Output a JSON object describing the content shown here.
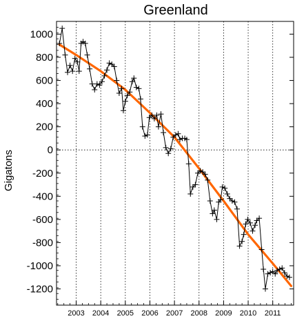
{
  "chart_data": {
    "type": "line",
    "title": "Greenland",
    "xlabel": "",
    "ylabel": "Gigatons",
    "xlim": [
      2002.2,
      2011.85
    ],
    "ylim": [
      -1340,
      1110
    ],
    "x_ticks": [
      {
        "value": 2003,
        "label": "2003"
      },
      {
        "value": 2004,
        "label": "2004"
      },
      {
        "value": 2005,
        "label": "2005"
      },
      {
        "value": 2006,
        "label": "2006"
      },
      {
        "value": 2007,
        "label": "2007"
      },
      {
        "value": 2008,
        "label": "2008"
      },
      {
        "value": 2009,
        "label": "2009"
      },
      {
        "value": 2010,
        "label": "2010"
      },
      {
        "value": 2011,
        "label": "2011"
      }
    ],
    "y_ticks": [
      {
        "value": 1000,
        "label": "1000"
      },
      {
        "value": 800,
        "label": "800"
      },
      {
        "value": 600,
        "label": "600"
      },
      {
        "value": 400,
        "label": "400"
      },
      {
        "value": 200,
        "label": "200"
      },
      {
        "value": 0,
        "label": "0"
      },
      {
        "value": -200,
        "label": "-200"
      },
      {
        "value": -400,
        "label": "-400"
      },
      {
        "value": -600,
        "label": "-600"
      },
      {
        "value": -800,
        "label": "-800"
      },
      {
        "value": -1000,
        "label": "-1000"
      },
      {
        "value": -1200,
        "label": "-1200"
      }
    ],
    "grid": {
      "vertical": true,
      "horizontal_zero_line": true,
      "style": "dotted"
    },
    "colors": {
      "observed": "#000000",
      "trend": "#ff6600"
    },
    "series": [
      {
        "style": "line-with-plus-markers",
        "points": [
          [
            2002.32,
            920
          ],
          [
            2002.43,
            1050
          ],
          [
            2002.55,
            820
          ],
          [
            2002.65,
            670
          ],
          [
            2002.75,
            730
          ],
          [
            2002.85,
            680
          ],
          [
            2002.95,
            790
          ],
          [
            2003.05,
            760
          ],
          [
            2003.12,
            680
          ],
          [
            2003.2,
            920
          ],
          [
            2003.28,
            935
          ],
          [
            2003.37,
            920
          ],
          [
            2003.45,
            820
          ],
          [
            2003.55,
            700
          ],
          [
            2003.65,
            570
          ],
          [
            2003.75,
            520
          ],
          [
            2003.85,
            570
          ],
          [
            2003.95,
            560
          ],
          [
            2004.05,
            590
          ],
          [
            2004.15,
            640
          ],
          [
            2004.25,
            690
          ],
          [
            2004.35,
            750
          ],
          [
            2004.45,
            740
          ],
          [
            2004.55,
            720
          ],
          [
            2004.65,
            600
          ],
          [
            2004.75,
            490
          ],
          [
            2004.85,
            530
          ],
          [
            2004.92,
            340
          ],
          [
            2005.0,
            420
          ],
          [
            2005.08,
            470
          ],
          [
            2005.18,
            500
          ],
          [
            2005.28,
            590
          ],
          [
            2005.35,
            620
          ],
          [
            2005.45,
            540
          ],
          [
            2005.55,
            530
          ],
          [
            2005.62,
            440
          ],
          [
            2005.7,
            200
          ],
          [
            2005.8,
            120
          ],
          [
            2005.9,
            130
          ],
          [
            2005.98,
            280
          ],
          [
            2006.08,
            300
          ],
          [
            2006.18,
            270
          ],
          [
            2006.28,
            300
          ],
          [
            2006.35,
            200
          ],
          [
            2006.45,
            310
          ],
          [
            2006.55,
            150
          ],
          [
            2006.65,
            20
          ],
          [
            2006.75,
            -30
          ],
          [
            2006.85,
            10
          ],
          [
            2006.95,
            110
          ],
          [
            2007.05,
            130
          ],
          [
            2007.15,
            140
          ],
          [
            2007.22,
            90
          ],
          [
            2007.32,
            100
          ],
          [
            2007.42,
            100
          ],
          [
            2007.5,
            90
          ],
          [
            2007.58,
            -120
          ],
          [
            2007.65,
            -380
          ],
          [
            2007.75,
            -320
          ],
          [
            2007.85,
            -300
          ],
          [
            2007.95,
            -200
          ],
          [
            2008.05,
            -180
          ],
          [
            2008.15,
            -190
          ],
          [
            2008.25,
            -210
          ],
          [
            2008.35,
            -260
          ],
          [
            2008.45,
            -440
          ],
          [
            2008.55,
            -550
          ],
          [
            2008.62,
            -520
          ],
          [
            2008.72,
            -600
          ],
          [
            2008.8,
            -450
          ],
          [
            2008.88,
            -430
          ],
          [
            2008.95,
            -320
          ],
          [
            2009.05,
            -330
          ],
          [
            2009.15,
            -380
          ],
          [
            2009.25,
            -420
          ],
          [
            2009.35,
            -440
          ],
          [
            2009.45,
            -450
          ],
          [
            2009.55,
            -510
          ],
          [
            2009.65,
            -830
          ],
          [
            2009.75,
            -790
          ],
          [
            2009.82,
            -730
          ],
          [
            2009.9,
            -640
          ],
          [
            2009.98,
            -600
          ],
          [
            2010.08,
            -630
          ],
          [
            2010.18,
            -700
          ],
          [
            2010.28,
            -650
          ],
          [
            2010.35,
            -610
          ],
          [
            2010.45,
            -590
          ],
          [
            2010.55,
            -860
          ],
          [
            2010.62,
            -1030
          ],
          [
            2010.7,
            -1200
          ],
          [
            2010.8,
            -1070
          ],
          [
            2010.9,
            -1060
          ],
          [
            2011.0,
            -1050
          ],
          [
            2011.1,
            -1070
          ],
          [
            2011.18,
            -1040
          ],
          [
            2011.28,
            -1030
          ],
          [
            2011.38,
            -1020
          ],
          [
            2011.48,
            -1060
          ],
          [
            2011.58,
            -1090
          ],
          [
            2011.68,
            -1100
          ]
        ]
      },
      {
        "style": "trend-line",
        "points": [
          [
            2002.32,
            910
          ],
          [
            2003.0,
            820
          ],
          [
            2004.0,
            680
          ],
          [
            2005.0,
            520
          ],
          [
            2006.0,
            320
          ],
          [
            2007.0,
            110
          ],
          [
            2008.0,
            -160
          ],
          [
            2009.0,
            -440
          ],
          [
            2010.0,
            -730
          ],
          [
            2011.0,
            -980
          ],
          [
            2011.75,
            -1175
          ]
        ]
      }
    ]
  }
}
